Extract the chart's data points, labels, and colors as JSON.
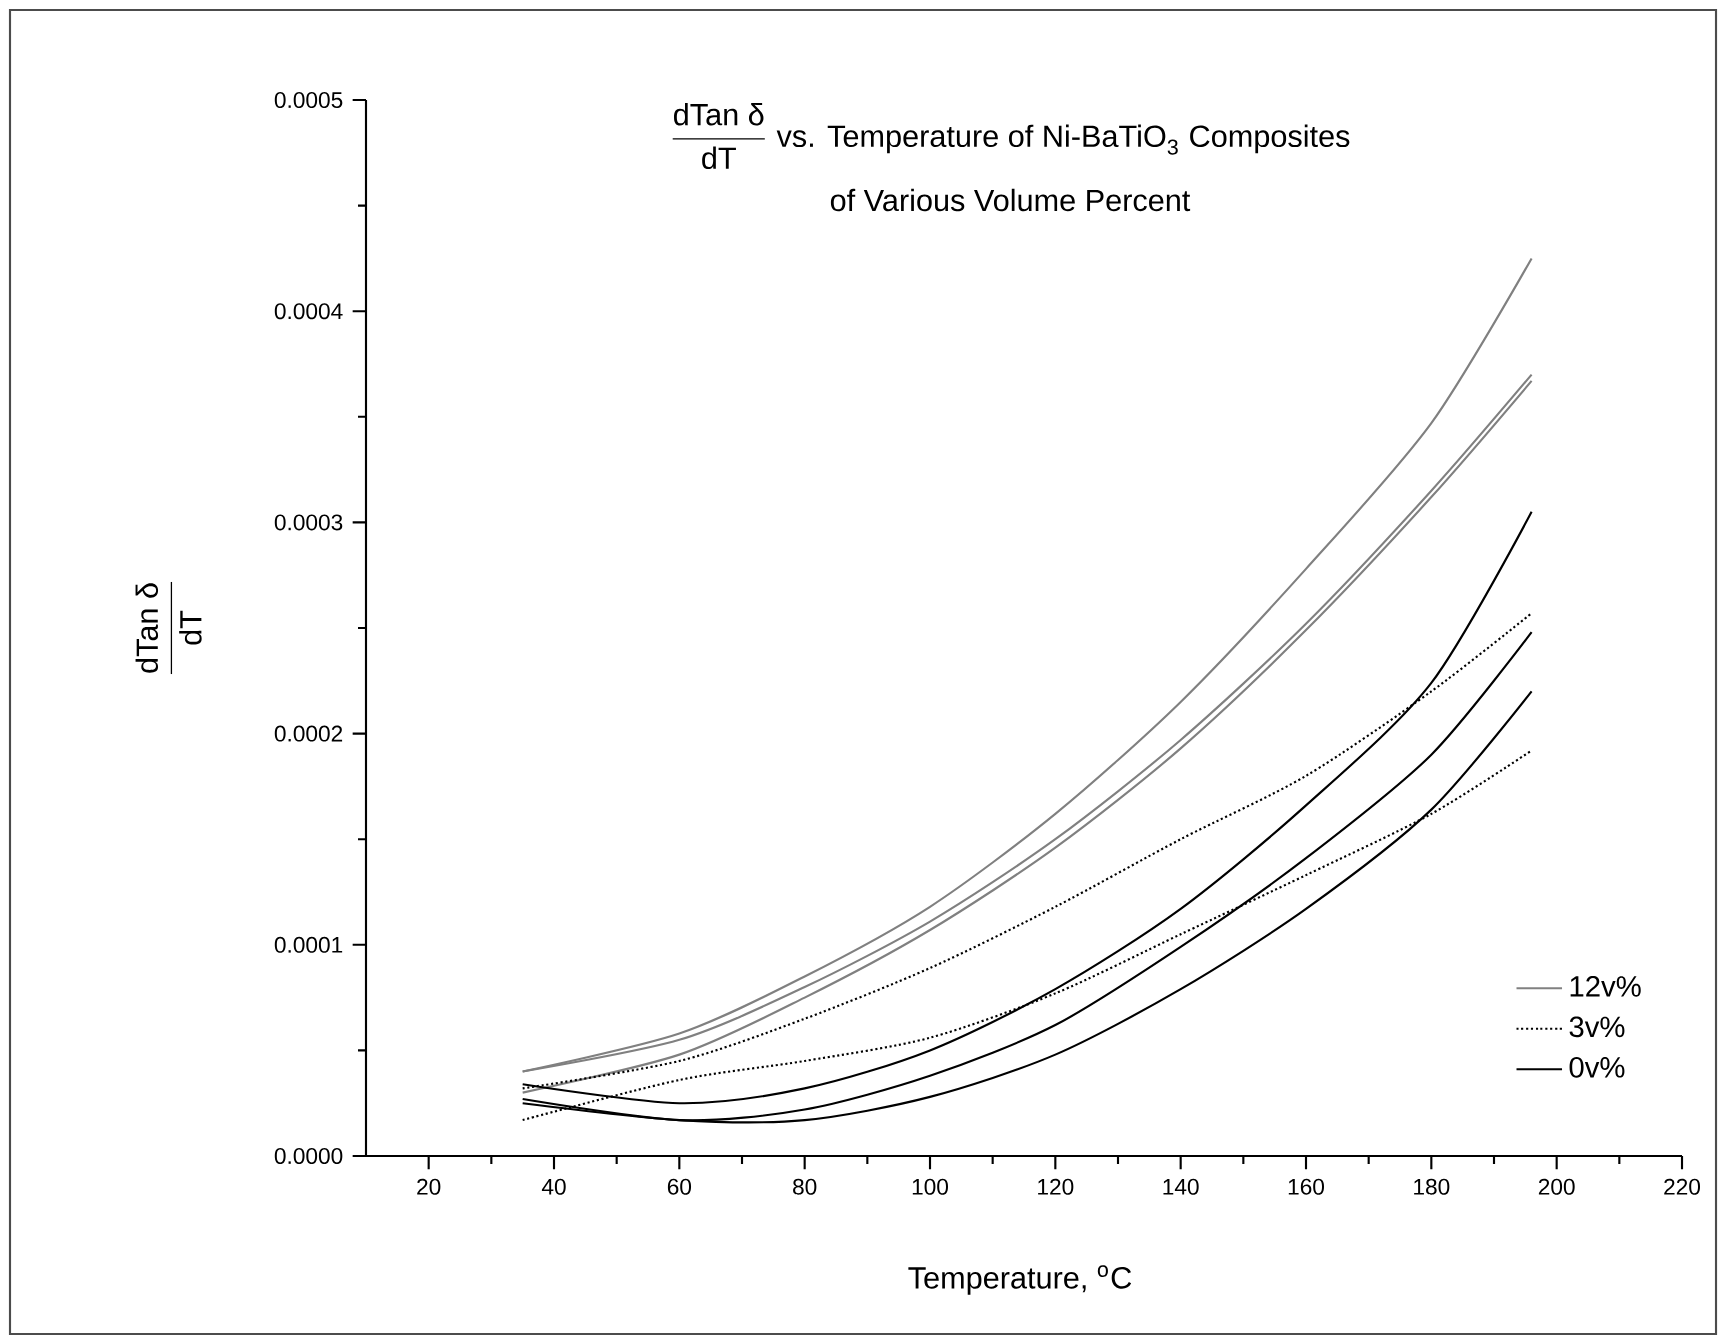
{
  "chart_data": {
    "type": "line",
    "title": "\\dfrac{\\text{dTan δ}}{\\text{dT}}\\text{ vs. Temperature of Ni-BaTiO}_{\\text{3}}\\text{ Composites}",
    "subtitle": "of Various Volume Percent",
    "xlabel": "Temperature, $^{o}$C",
    "ylabel": "\\dfrac{\\text{dTan δ}}{\\text{dT}}",
    "xlim": [
      10,
      220
    ],
    "ylim": [
      0,
      0.0005
    ],
    "xticks": [
      20,
      40,
      60,
      80,
      100,
      120,
      140,
      160,
      180,
      200,
      220
    ],
    "yticks": [
      {
        "value": 0,
        "label": "0.0000"
      },
      {
        "value": 0.0001,
        "label": "0.0001"
      },
      {
        "value": 0.0002,
        "label": "0.0002"
      },
      {
        "value": 0.0003,
        "label": "0.0003"
      },
      {
        "value": 0.0004,
        "label": "0.0004"
      },
      {
        "value": 0.0005,
        "label": "0.0005"
      }
    ],
    "grid": false,
    "legend": "bottom right",
    "marker": "none",
    "x": [
      35,
      60,
      80,
      100,
      120,
      140,
      160,
      180,
      196
    ],
    "series": [
      {
        "name": "12v%",
        "color": "#808080",
        "line_style": "solid",
        "values": [
          4e-05,
          5.8e-05,
          8.5e-05,
          0.000118,
          0.000162,
          0.000215,
          0.000278,
          0.000347,
          0.000425
        ]
      },
      {
        "color": "#808080",
        "line_style": "solid",
        "values": [
          4e-05,
          5.5e-05,
          8e-05,
          0.000111,
          0.00015,
          0.000197,
          0.000252,
          0.000315,
          0.00037
        ]
      },
      {
        "color": "#808080",
        "line_style": "solid",
        "values": [
          3e-05,
          4.8e-05,
          7.5e-05,
          0.000107,
          0.000146,
          0.000193,
          0.000249,
          0.000312,
          0.000367
        ]
      },
      {
        "name": "3v%",
        "color": "#000000",
        "line_style": "dotted",
        "values": [
          3.2e-05,
          4.5e-05,
          6.5e-05,
          8.9e-05,
          0.000118,
          0.00015,
          0.00018,
          0.00022,
          0.000257
        ]
      },
      {
        "color": "#000000",
        "line_style": "dotted",
        "values": [
          1.7e-05,
          3.6e-05,
          4.5e-05,
          5.6e-05,
          7.7e-05,
          0.000105,
          0.000133,
          0.000162,
          0.000192
        ]
      },
      {
        "name": "0v%",
        "color": "#000000",
        "line_style": "solid",
        "values": [
          3.4e-05,
          2.5e-05,
          3.2e-05,
          5e-05,
          7.9e-05,
          0.000117,
          0.000166,
          0.000224,
          0.000305
        ]
      },
      {
        "color": "#000000",
        "line_style": "solid",
        "values": [
          2.7e-05,
          1.7e-05,
          2.2e-05,
          3.8e-05,
          6.2e-05,
          9.9e-05,
          0.000141,
          0.00019,
          0.000248
        ]
      },
      {
        "color": "#000000",
        "line_style": "solid",
        "values": [
          2.5e-05,
          1.7e-05,
          1.7e-05,
          2.8e-05,
          4.8e-05,
          7.9e-05,
          0.000117,
          0.000164,
          0.00022
        ]
      }
    ]
  }
}
